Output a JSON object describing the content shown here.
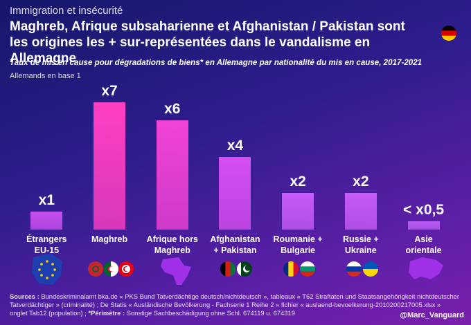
{
  "chart_data": {
    "type": "bar",
    "kicker": "Immigration et insécurité",
    "title": "Maghreb, Afrique subsaharienne et Afghanistan / Pakistan sont les origines les + sur-représentées dans le vandalisme en Allemagne",
    "subtitle": "Taux de mis en cause pour dégradations de biens* en Allemagne par nationalité du mis en cause, 2017-2021",
    "note": "Allemands en base 1",
    "categories": [
      "Étrangers\nEU-15",
      "Maghreb",
      "Afrique hors\nMaghreb",
      "Afghanistan\n+ Pakistan",
      "Roumanie +\nBulgarie",
      "Russie +\nUkraine",
      "Asie\norientale"
    ],
    "values": [
      1,
      7,
      6,
      4,
      2,
      2,
      0.45
    ],
    "value_labels": [
      "x1",
      "x7",
      "x6",
      "x4",
      "x2",
      "x2",
      "< x0,5"
    ],
    "colors": [
      "#c84ef0",
      "#ff3fc4",
      "#f242d6",
      "#d64ef2",
      "#c85af8",
      "#c85af8",
      "#b85cf4"
    ],
    "sources": {
      "label": "Sources :",
      "text": " Bundeskriminalamt bka.de « PKS Bund Tatverdächtige deutsch/nichtdeutsch », tableaux « T62 Straftaten und Staatsangehörigkeit nichtdeutscher Tatverdächtiger » (criminalité) ; De Statis « Ausländische Bevölkerung - Fachserie 1 Reihe 2 » fichier « auslaend-bevoelkerung-2010200217005.xlsx » onglet Tab12 (population) ; ",
      "perimetre_label": "*Périmètre :",
      "perimetre_text": " Sonstige Sachbeschädigung ohne Schl. 674119 u. 674319"
    },
    "credit": "@Marc_Vanguard"
  }
}
